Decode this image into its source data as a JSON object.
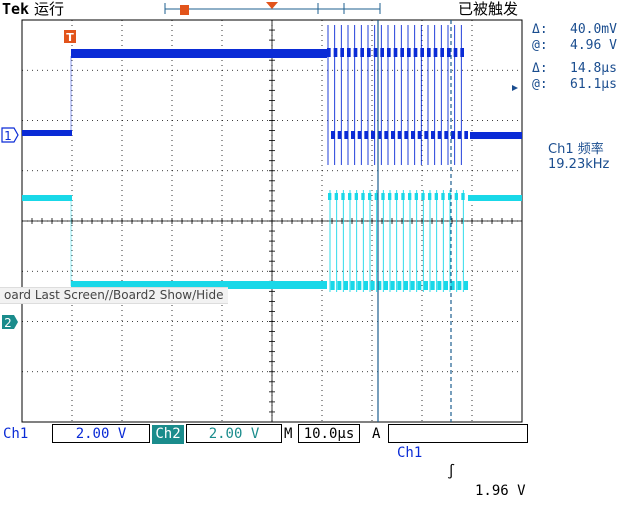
{
  "header": {
    "brand": "Tek",
    "run_state": "运行",
    "trigger_state": "已被触发"
  },
  "measurements": {
    "delta_v_symbol": "Δ:",
    "delta_v": "40.0mV",
    "at_v_symbol": "@:",
    "at_v": "4.96 V",
    "delta_t_symbol": "Δ:",
    "delta_t": "14.8µs",
    "at_t_symbol": "@:",
    "at_t": "61.1µs"
  },
  "frequency": {
    "label": "Ch1 频率",
    "value": "19.23kHz"
  },
  "markers": {
    "trigger_marker": "T",
    "ch1_marker": "1",
    "ch2_marker": "2"
  },
  "menu_ghost": "oard Last Screen//Board2 Show/Hide",
  "bottom_bar": {
    "ch1_label": "Ch1",
    "ch1_scale": "2.00 V",
    "ch2_label": "Ch2",
    "ch2_scale": "2.00 V",
    "timebase_label": "M",
    "timebase": "10.0µs",
    "trigger_mode": "A",
    "trigger_source": "Ch1",
    "trigger_slope": "∫",
    "trigger_level": "1.96 V"
  },
  "colors": {
    "ch1": "#0a2bd6",
    "ch2": "#19d8e8",
    "cursor": "#1d5f8f",
    "grid": "#000000",
    "ch2_label_bg": "#1a8c8c"
  }
}
